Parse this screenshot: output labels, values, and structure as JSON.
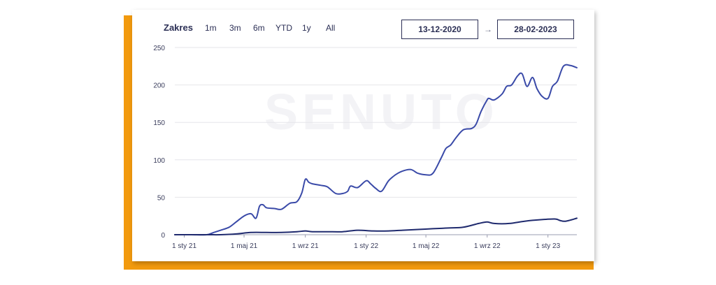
{
  "range": {
    "label": "Zakres",
    "buttons": [
      "1m",
      "3m",
      "6m",
      "YTD",
      "1y",
      "All"
    ],
    "start_date": "13-12-2020",
    "arrow": "→",
    "end_date": "28-02-2023"
  },
  "watermark": "SENUTO",
  "colors": {
    "accent": "#f29a0e",
    "series_main": "#3a4aa8",
    "series_secondary": "#1f2a6e",
    "grid": "#e6e6ea"
  },
  "chart_data": {
    "type": "line",
    "title": "",
    "xlabel": "",
    "ylabel": "",
    "ylim": [
      0,
      250
    ],
    "yticks": [
      0,
      50,
      100,
      150,
      200,
      250
    ],
    "xticks": [
      {
        "label": "1 sty 21",
        "date": "2021-01-01"
      },
      {
        "label": "1 maj 21",
        "date": "2021-05-01"
      },
      {
        "label": "1 wrz 21",
        "date": "2021-09-01"
      },
      {
        "label": "1 sty 22",
        "date": "2022-01-01"
      },
      {
        "label": "1 maj 22",
        "date": "2022-05-01"
      },
      {
        "label": "1 wrz 22",
        "date": "2022-09-01"
      },
      {
        "label": "1 sty 23",
        "date": "2023-01-01"
      }
    ],
    "grid": true,
    "legend": "none",
    "series": [
      {
        "x": [
          "2020-12-13",
          "2021-01-15",
          "2021-02-15",
          "2021-03-01",
          "2021-03-15",
          "2021-04-01",
          "2021-04-15",
          "2021-05-01",
          "2021-05-15",
          "2021-05-25",
          "2021-06-01",
          "2021-06-08",
          "2021-06-15",
          "2021-07-01",
          "2021-07-15",
          "2021-08-01",
          "2021-08-15",
          "2021-08-25",
          "2021-09-01",
          "2021-09-08",
          "2021-09-15",
          "2021-10-01",
          "2021-10-15",
          "2021-11-01",
          "2021-11-15",
          "2021-11-25",
          "2021-12-01",
          "2021-12-15",
          "2022-01-01",
          "2022-01-10",
          "2022-01-20",
          "2022-02-01",
          "2022-02-15",
          "2022-03-01",
          "2022-03-15",
          "2022-04-01",
          "2022-04-15",
          "2022-05-01",
          "2022-05-15",
          "2022-06-01",
          "2022-06-10",
          "2022-06-20",
          "2022-07-01",
          "2022-07-15",
          "2022-08-01",
          "2022-08-10",
          "2022-08-20",
          "2022-09-01",
          "2022-09-05",
          "2022-09-15",
          "2022-10-01",
          "2022-10-10",
          "2022-10-20",
          "2022-11-01",
          "2022-11-10",
          "2022-11-20",
          "2022-12-01",
          "2022-12-10",
          "2022-12-20",
          "2023-01-01",
          "2023-01-10",
          "2023-01-20",
          "2023-02-01",
          "2023-02-15",
          "2023-02-28"
        ],
        "values": [
          0,
          0,
          0,
          3,
          6,
          10,
          17,
          25,
          28,
          22,
          38,
          40,
          36,
          35,
          34,
          42,
          44,
          56,
          74,
          70,
          68,
          66,
          64,
          55,
          55,
          58,
          65,
          63,
          72,
          68,
          62,
          58,
          72,
          80,
          85,
          87,
          82,
          80,
          82,
          103,
          115,
          120,
          130,
          140,
          142,
          148,
          165,
          180,
          182,
          180,
          188,
          198,
          200,
          212,
          215,
          198,
          210,
          195,
          185,
          182,
          198,
          205,
          225,
          226,
          223
        ]
      },
      {
        "x": [
          "2020-12-13",
          "2021-02-15",
          "2021-03-15",
          "2021-04-15",
          "2021-05-15",
          "2021-06-15",
          "2021-07-15",
          "2021-08-15",
          "2021-09-01",
          "2021-09-15",
          "2021-10-15",
          "2021-11-15",
          "2021-12-15",
          "2022-01-15",
          "2022-02-15",
          "2022-03-15",
          "2022-04-15",
          "2022-05-15",
          "2022-06-15",
          "2022-07-15",
          "2022-08-15",
          "2022-09-01",
          "2022-09-15",
          "2022-10-15",
          "2022-11-15",
          "2022-12-15",
          "2023-01-15",
          "2023-01-25",
          "2023-02-05",
          "2023-02-28"
        ],
        "values": [
          0,
          0,
          0,
          1,
          3,
          3,
          3,
          4,
          5,
          4,
          4,
          4,
          6,
          5,
          5,
          6,
          7,
          8,
          9,
          10,
          15,
          17,
          15,
          15,
          18,
          20,
          21,
          19,
          18,
          22
        ]
      }
    ]
  }
}
